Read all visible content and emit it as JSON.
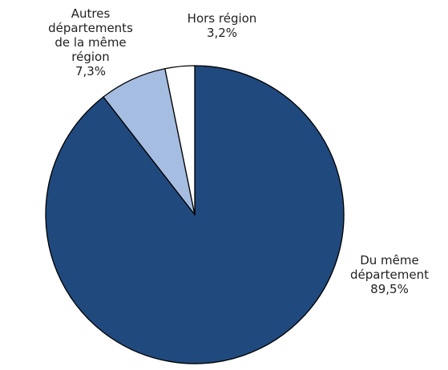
{
  "chart_data": {
    "type": "pie",
    "categories": [
      "Du même département",
      "Autres départements de la même région",
      "Hors région"
    ],
    "values": [
      89.5,
      7.3,
      3.2
    ],
    "value_labels": [
      "89,5%",
      "7,3%",
      "3,2%"
    ],
    "colors": [
      "#20497e",
      "#a6bde2",
      "#ffffff"
    ]
  }
}
